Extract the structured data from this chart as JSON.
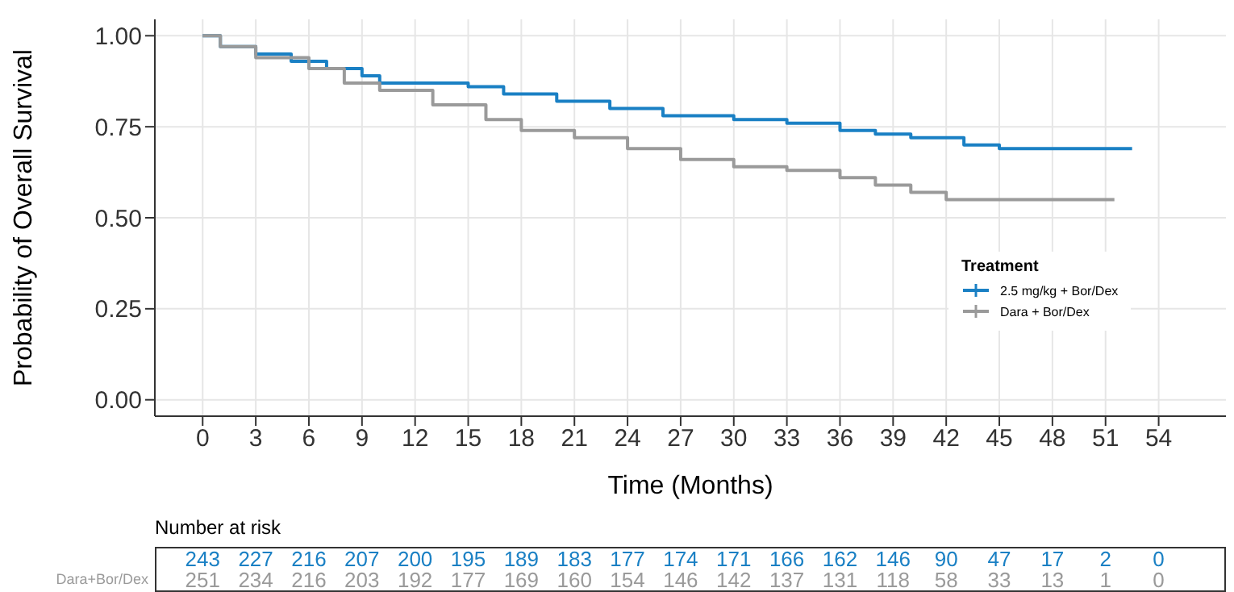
{
  "chart_data": {
    "type": "step",
    "xlabel": "Time (Months)",
    "ylabel": "Probability of Overall Survival",
    "legend_title": "Treatment",
    "legend": "right",
    "grid": true,
    "xlim": [
      -2.7,
      57.8
    ],
    "xticks": [
      0,
      3,
      6,
      9,
      12,
      15,
      18,
      21,
      24,
      27,
      30,
      33,
      36,
      39,
      42,
      45,
      48,
      51,
      54
    ],
    "ylim": [
      -0.045,
      1.045
    ],
    "yticks": [
      {
        "value": 0,
        "label": "0.00"
      },
      0.25,
      {
        "value": 0.5,
        "label": "0.50"
      },
      0.75,
      {
        "value": 1,
        "label": "1.00"
      }
    ],
    "series": [
      {
        "name": "2.5 mg/kg + Bor/Dex",
        "color": "#1a80c4",
        "x": [
          0,
          1,
          3,
          5,
          7,
          9,
          10,
          15,
          17,
          20,
          23,
          26,
          30,
          33,
          36,
          38,
          40,
          43,
          45,
          52.5
        ],
        "values": [
          1,
          0.97,
          0.95,
          0.93,
          0.91,
          0.89,
          0.87,
          0.86,
          0.84,
          0.82,
          0.8,
          0.78,
          0.77,
          0.76,
          0.74,
          0.73,
          0.72,
          0.7,
          0.69,
          0.69
        ]
      },
      {
        "name": "Dara + Bor/Dex",
        "color": "#9a9a9a",
        "x": [
          0,
          1,
          3,
          6,
          8,
          10,
          13,
          16,
          18,
          21,
          24,
          27,
          30,
          33,
          36,
          38,
          40,
          42,
          51.5
        ],
        "values": [
          1,
          0.97,
          0.94,
          0.91,
          0.87,
          0.85,
          0.81,
          0.77,
          0.74,
          0.72,
          0.69,
          0.66,
          0.64,
          0.63,
          0.61,
          0.59,
          0.57,
          0.55,
          0.55
        ]
      }
    ],
    "annotations": [
      "Number at risk",
      "243 227 216 207 200 195 189 183 177 174 171 166 162 146 90 47 17 2 0",
      "Dara+Bor/Dex",
      "251 234 216 203 192 177 169 160 154 146 142 137 131 118 58 33 13 1 0"
    ]
  }
}
